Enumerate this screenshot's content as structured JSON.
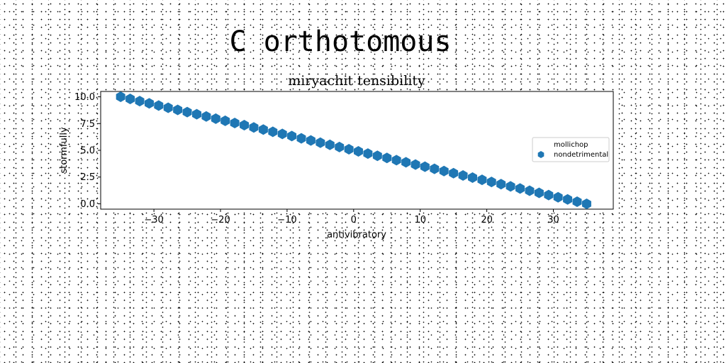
{
  "suptitle": "C orthotomous",
  "chart_data": {
    "type": "scatter",
    "title": "miryachit tensibility",
    "xlabel": "antivibratory",
    "ylabel": "stormfully",
    "xlim": [
      -38,
      39
    ],
    "ylim": [
      -0.5,
      10.5
    ],
    "xticks": [
      -30,
      -20,
      -10,
      0,
      10,
      20,
      30
    ],
    "yticks": [
      0.0,
      2.5,
      5.0,
      7.5,
      10.0
    ],
    "grid": false,
    "legend_position": "right",
    "series": [
      {
        "name": "mollichop",
        "color": "#1f77b4",
        "marker": "none",
        "x": [
          -35.0,
          -33.57,
          -32.14,
          -30.71,
          -29.29,
          -27.86,
          -26.43,
          -25.0,
          -23.57,
          -22.14,
          -20.71,
          -19.29,
          -17.86,
          -16.43,
          -15.0,
          -13.57,
          -12.14,
          -10.71,
          -9.29,
          -7.86,
          -6.43,
          -5.0,
          -3.57,
          -2.14,
          -0.71,
          0.71,
          2.14,
          3.57,
          5.0,
          6.43,
          7.86,
          9.29,
          10.71,
          12.14,
          13.57,
          15.0,
          16.43,
          17.86,
          19.29,
          20.71,
          22.14,
          23.57,
          25.0,
          26.43,
          27.86,
          29.29,
          30.71,
          32.14,
          33.57,
          35.0
        ],
        "y": [
          10.0,
          9.8,
          9.6,
          9.4,
          9.2,
          9.0,
          8.8,
          8.6,
          8.4,
          8.2,
          8.0,
          7.8,
          7.6,
          7.4,
          7.2,
          7.0,
          6.8,
          6.6,
          6.4,
          6.2,
          6.0,
          5.8,
          5.6,
          5.4,
          5.2,
          5.0,
          4.8,
          4.6,
          4.4,
          4.2,
          4.0,
          3.8,
          3.6,
          3.4,
          3.2,
          3.0,
          2.8,
          2.6,
          2.4,
          2.2,
          2.0,
          1.8,
          1.6,
          1.4,
          1.2,
          1.0,
          0.8,
          0.6,
          0.4,
          0.2
        ]
      },
      {
        "name": "nondetrimental",
        "color": "#1f77b4",
        "marker": "hexagon",
        "x": [
          -35.0,
          -33.57,
          -32.14,
          -30.71,
          -29.29,
          -27.86,
          -26.43,
          -25.0,
          -23.57,
          -22.14,
          -20.71,
          -19.29,
          -17.86,
          -16.43,
          -15.0,
          -13.57,
          -12.14,
          -10.71,
          -9.29,
          -7.86,
          -6.43,
          -5.0,
          -3.57,
          -2.14,
          -0.71,
          0.71,
          2.14,
          3.57,
          5.0,
          6.43,
          7.86,
          9.29,
          10.71,
          12.14,
          13.57,
          15.0,
          16.43,
          17.86,
          19.29,
          20.71,
          22.14,
          23.57,
          25.0,
          26.43,
          27.86,
          29.29,
          30.71,
          32.14,
          33.57,
          35.0
        ],
        "y": [
          10.0,
          9.8,
          9.6,
          9.39,
          9.18,
          8.98,
          8.78,
          8.57,
          8.37,
          8.16,
          7.96,
          7.76,
          7.55,
          7.35,
          7.14,
          6.94,
          6.73,
          6.53,
          6.33,
          6.12,
          5.92,
          5.71,
          5.51,
          5.31,
          5.1,
          4.9,
          4.69,
          4.49,
          4.29,
          4.08,
          3.88,
          3.67,
          3.47,
          3.27,
          3.06,
          2.86,
          2.65,
          2.45,
          2.24,
          2.04,
          1.84,
          1.63,
          1.43,
          1.22,
          1.02,
          0.82,
          0.61,
          0.41,
          0.2,
          0.0
        ]
      }
    ]
  }
}
